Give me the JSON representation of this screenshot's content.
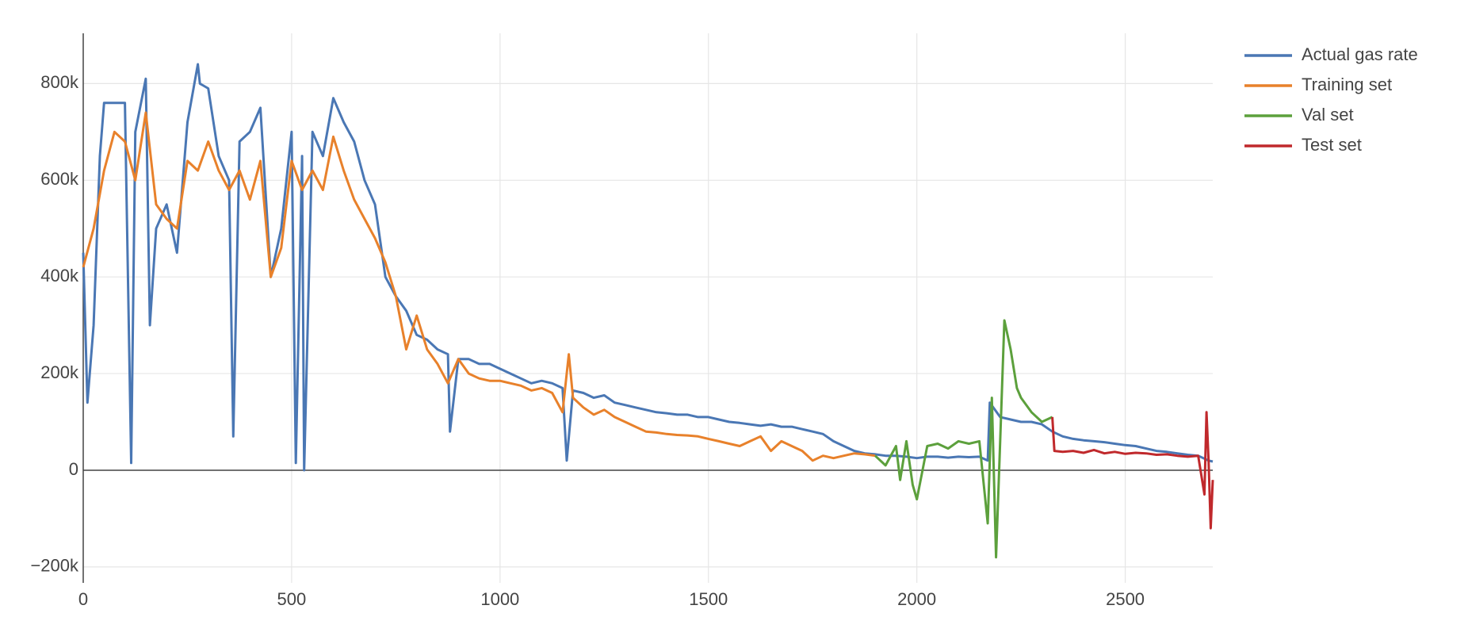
{
  "chart_data": {
    "type": "line",
    "xlim": [
      0,
      2710
    ],
    "ylim": [
      -233000,
      904000
    ],
    "xticks": [
      0,
      500,
      1000,
      1500,
      2000,
      2500
    ],
    "yticks": [
      {
        "value": -200000,
        "label": "−200k"
      },
      0,
      {
        "value": 200000,
        "label": "200k"
      },
      {
        "value": 400000,
        "label": "400k"
      },
      {
        "value": 600000,
        "label": "600k"
      },
      {
        "value": 800000,
        "label": "800k"
      }
    ],
    "grid": true,
    "legend": "top-right",
    "series": [
      {
        "name": "Actual gas rate",
        "color": "#4a77b4",
        "x": [
          0,
          10,
          25,
          40,
          50,
          60,
          75,
          100,
          115,
          125,
          150,
          160,
          175,
          200,
          225,
          250,
          275,
          280,
          300,
          325,
          350,
          360,
          375,
          400,
          425,
          450,
          475,
          500,
          510,
          525,
          530,
          550,
          575,
          600,
          625,
          650,
          675,
          700,
          725,
          750,
          775,
          800,
          825,
          850,
          875,
          880,
          900,
          925,
          950,
          975,
          1000,
          1025,
          1050,
          1075,
          1100,
          1125,
          1150,
          1160,
          1175,
          1200,
          1225,
          1250,
          1275,
          1300,
          1325,
          1350,
          1375,
          1400,
          1425,
          1450,
          1475,
          1500,
          1525,
          1550,
          1575,
          1600,
          1625,
          1650,
          1675,
          1700,
          1725,
          1750,
          1775,
          1800,
          1825,
          1850,
          1875,
          1900,
          1925,
          1950,
          1975,
          2000,
          2025,
          2050,
          2075,
          2100,
          2125,
          2150,
          2170,
          2175,
          2200,
          2225,
          2250,
          2275,
          2300,
          2325,
          2350,
          2375,
          2400,
          2425,
          2450,
          2475,
          2500,
          2525,
          2550,
          2575,
          2600,
          2625,
          2650,
          2675,
          2700,
          2710
        ],
        "values": [
          450000,
          140000,
          300000,
          650000,
          760000,
          760000,
          760000,
          760000,
          15000,
          700000,
          810000,
          300000,
          500000,
          550000,
          450000,
          720000,
          840000,
          800000,
          790000,
          650000,
          600000,
          70000,
          680000,
          700000,
          750000,
          400000,
          500000,
          700000,
          15000,
          650000,
          0,
          700000,
          650000,
          770000,
          720000,
          680000,
          600000,
          550000,
          400000,
          360000,
          330000,
          280000,
          270000,
          250000,
          240000,
          80000,
          230000,
          230000,
          220000,
          220000,
          210000,
          200000,
          190000,
          180000,
          185000,
          180000,
          170000,
          20000,
          165000,
          160000,
          150000,
          155000,
          140000,
          135000,
          130000,
          125000,
          120000,
          118000,
          115000,
          115000,
          110000,
          110000,
          105000,
          100000,
          98000,
          95000,
          92000,
          95000,
          90000,
          90000,
          85000,
          80000,
          75000,
          60000,
          50000,
          40000,
          35000,
          33000,
          30000,
          30000,
          28000,
          25000,
          28000,
          28000,
          26000,
          28000,
          27000,
          28000,
          20000,
          140000,
          110000,
          105000,
          100000,
          100000,
          95000,
          80000,
          70000,
          65000,
          62000,
          60000,
          58000,
          55000,
          52000,
          50000,
          45000,
          40000,
          38000,
          35000,
          32000,
          30000,
          20000,
          18000
        ]
      },
      {
        "name": "Training set",
        "color": "#e8812b",
        "x": [
          0,
          25,
          50,
          75,
          100,
          125,
          150,
          175,
          200,
          225,
          250,
          275,
          300,
          325,
          350,
          375,
          400,
          425,
          450,
          475,
          500,
          525,
          550,
          575,
          600,
          625,
          650,
          675,
          700,
          725,
          750,
          775,
          800,
          825,
          850,
          875,
          900,
          925,
          950,
          975,
          1000,
          1025,
          1050,
          1075,
          1100,
          1125,
          1150,
          1165,
          1175,
          1200,
          1225,
          1250,
          1275,
          1300,
          1325,
          1350,
          1375,
          1400,
          1425,
          1450,
          1475,
          1500,
          1525,
          1550,
          1575,
          1600,
          1625,
          1650,
          1675,
          1700,
          1725,
          1750,
          1775,
          1800,
          1825,
          1850,
          1875,
          1900
        ],
        "values": [
          420000,
          500000,
          620000,
          700000,
          680000,
          600000,
          740000,
          550000,
          520000,
          500000,
          640000,
          620000,
          680000,
          620000,
          580000,
          620000,
          560000,
          640000,
          400000,
          460000,
          640000,
          580000,
          620000,
          580000,
          690000,
          620000,
          560000,
          520000,
          480000,
          430000,
          360000,
          250000,
          320000,
          250000,
          220000,
          180000,
          230000,
          200000,
          190000,
          185000,
          185000,
          180000,
          175000,
          165000,
          170000,
          160000,
          120000,
          240000,
          150000,
          130000,
          115000,
          125000,
          110000,
          100000,
          90000,
          80000,
          78000,
          75000,
          73000,
          72000,
          70000,
          65000,
          60000,
          55000,
          50000,
          60000,
          70000,
          40000,
          60000,
          50000,
          40000,
          20000,
          30000,
          25000,
          30000,
          35000,
          33000,
          30000
        ]
      },
      {
        "name": "Val set",
        "color": "#5ca03c",
        "x": [
          1900,
          1925,
          1950,
          1960,
          1975,
          1990,
          2000,
          2025,
          2050,
          2075,
          2100,
          2125,
          2150,
          2170,
          2180,
          2190,
          2200,
          2210,
          2225,
          2240,
          2250,
          2275,
          2300,
          2325
        ],
        "values": [
          30000,
          10000,
          50000,
          -20000,
          60000,
          -30000,
          -60000,
          50000,
          55000,
          45000,
          60000,
          55000,
          60000,
          -110000,
          150000,
          -180000,
          60000,
          310000,
          250000,
          170000,
          150000,
          120000,
          100000,
          110000
        ]
      },
      {
        "name": "Test set",
        "color": "#c0292c",
        "x": [
          2325,
          2330,
          2350,
          2375,
          2400,
          2425,
          2450,
          2475,
          2500,
          2525,
          2550,
          2575,
          2600,
          2625,
          2650,
          2675,
          2690,
          2695,
          2700,
          2705,
          2710
        ],
        "values": [
          110000,
          40000,
          38000,
          40000,
          36000,
          42000,
          35000,
          38000,
          34000,
          36000,
          35000,
          32000,
          33000,
          30000,
          28000,
          30000,
          -50000,
          120000,
          20000,
          -120000,
          -20000
        ]
      }
    ]
  }
}
